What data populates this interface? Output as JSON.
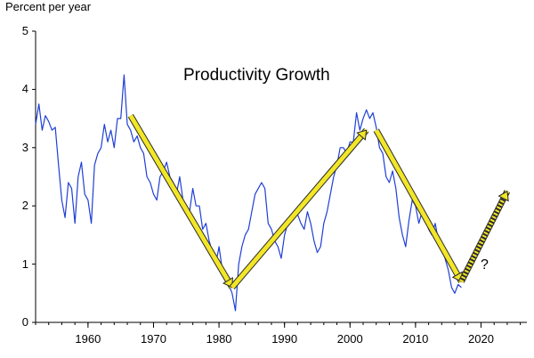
{
  "chart_data": {
    "type": "line",
    "title": "Productivity Growth",
    "ylabel": "Percent per year",
    "xlabel": "",
    "xlim": [
      1952,
      2027
    ],
    "ylim": [
      0,
      5
    ],
    "y_ticks": [
      "0",
      "1",
      "2",
      "3",
      "4",
      "5"
    ],
    "x_ticks": [
      "1960",
      "1970",
      "1980",
      "1990",
      "2000",
      "2010",
      "2020"
    ],
    "annotation": "?",
    "colors": {
      "series": "#1f3fd6",
      "trend": "#f2e627",
      "trend_edge": "#2a2a2a",
      "axis": "#000000"
    },
    "series": [
      {
        "name": "Productivity growth",
        "x": [
          1952.0,
          1952.5,
          1953.0,
          1953.5,
          1954.0,
          1954.5,
          1955.0,
          1955.5,
          1956.0,
          1956.5,
          1957.0,
          1957.5,
          1958.0,
          1958.5,
          1959.0,
          1959.5,
          1960.0,
          1960.5,
          1961.0,
          1961.5,
          1962.0,
          1962.5,
          1963.0,
          1963.5,
          1964.0,
          1964.5,
          1965.0,
          1965.5,
          1966.0,
          1966.5,
          1967.0,
          1967.5,
          1968.0,
          1968.5,
          1969.0,
          1969.5,
          1970.0,
          1970.5,
          1971.0,
          1971.5,
          1972.0,
          1972.5,
          1973.0,
          1973.5,
          1974.0,
          1974.5,
          1975.0,
          1975.5,
          1976.0,
          1976.5,
          1977.0,
          1977.5,
          1978.0,
          1978.5,
          1979.0,
          1979.5,
          1980.0,
          1980.5,
          1981.0,
          1981.5,
          1982.0,
          1982.5,
          1983.0,
          1983.5,
          1984.0,
          1984.5,
          1985.0,
          1985.5,
          1986.0,
          1986.5,
          1987.0,
          1987.5,
          1988.0,
          1988.5,
          1989.0,
          1989.5,
          1990.0,
          1990.5,
          1991.0,
          1991.5,
          1992.0,
          1992.5,
          1993.0,
          1993.5,
          1994.0,
          1994.5,
          1995.0,
          1995.5,
          1996.0,
          1996.5,
          1997.0,
          1997.5,
          1998.0,
          1998.5,
          1999.0,
          1999.5,
          2000.0,
          2000.5,
          2001.0,
          2001.5,
          2002.0,
          2002.5,
          2003.0,
          2003.5,
          2004.0,
          2004.5,
          2005.0,
          2005.5,
          2006.0,
          2006.5,
          2007.0,
          2007.5,
          2008.0,
          2008.5,
          2009.0,
          2009.5,
          2010.0,
          2010.5,
          2011.0,
          2011.5,
          2012.0,
          2012.5,
          2013.0,
          2013.5,
          2014.0,
          2014.5,
          2015.0,
          2015.5,
          2016.0,
          2016.5,
          2017.0
        ],
        "values": [
          3.4,
          3.75,
          3.3,
          3.55,
          3.45,
          3.3,
          3.35,
          2.7,
          2.1,
          1.8,
          2.4,
          2.3,
          1.7,
          2.5,
          2.75,
          2.2,
          2.1,
          1.7,
          2.7,
          2.9,
          3.0,
          3.4,
          3.1,
          3.3,
          3.0,
          3.5,
          3.5,
          4.25,
          3.4,
          3.3,
          3.1,
          3.2,
          3.0,
          2.9,
          2.5,
          2.4,
          2.2,
          2.1,
          2.5,
          2.6,
          2.75,
          2.5,
          2.4,
          2.2,
          2.5,
          2.1,
          2.0,
          1.9,
          2.3,
          2.0,
          2.0,
          1.6,
          1.7,
          1.4,
          1.2,
          1.0,
          1.3,
          0.9,
          0.7,
          0.65,
          0.5,
          0.2,
          1.0,
          1.3,
          1.5,
          1.6,
          1.9,
          2.2,
          2.3,
          2.4,
          2.3,
          1.7,
          1.6,
          1.4,
          1.3,
          1.1,
          1.5,
          1.7,
          1.8,
          1.9,
          1.85,
          1.7,
          1.6,
          1.9,
          1.7,
          1.4,
          1.2,
          1.3,
          1.7,
          1.9,
          2.2,
          2.5,
          2.7,
          3.0,
          3.0,
          2.9,
          3.1,
          3.1,
          3.6,
          3.3,
          3.5,
          3.65,
          3.5,
          3.6,
          3.35,
          3.0,
          2.9,
          2.5,
          2.4,
          2.6,
          2.3,
          1.8,
          1.5,
          1.3,
          1.75,
          2.1,
          2.0,
          1.7,
          1.9,
          1.8,
          1.6,
          1.5,
          1.7,
          1.4,
          1.3,
          1.1,
          0.9,
          0.6,
          0.5,
          0.65,
          0.6
        ]
      }
    ],
    "trend_segments": [
      {
        "x": [
          1966.5,
          1982.0
        ],
        "y": [
          3.55,
          0.6
        ]
      },
      {
        "x": [
          1982.0,
          2002.5
        ],
        "y": [
          0.6,
          3.3
        ]
      },
      {
        "x": [
          2004.0,
          2017.0
        ],
        "y": [
          3.3,
          0.7
        ]
      }
    ],
    "projection": {
      "x": [
        2017.0,
        2024.0
      ],
      "y": [
        0.7,
        2.25
      ]
    }
  }
}
